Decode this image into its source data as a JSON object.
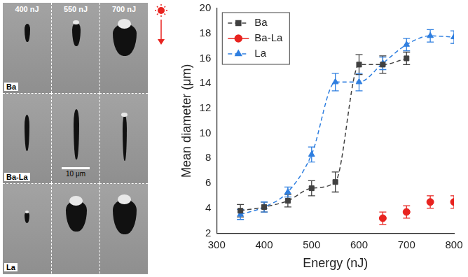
{
  "chart_data": {
    "type": "line",
    "xlabel": "Energy (nJ)",
    "ylabel": "Mean diameter (μm)",
    "xlim": [
      300,
      800
    ],
    "xticks": [
      300,
      400,
      500,
      600,
      700,
      800
    ],
    "ylim": [
      2,
      20
    ],
    "yticks": [
      2,
      4,
      6,
      8,
      10,
      12,
      14,
      16,
      18,
      20
    ],
    "grid": false,
    "legend": "top-left",
    "series": [
      {
        "name": "Ba",
        "color": "#404040",
        "marker": "square",
        "line_style": "dashed",
        "x": [
          350,
          400,
          450,
          500,
          550,
          600,
          650,
          700
        ],
        "values": [
          3.8,
          4.1,
          4.6,
          5.6,
          6.1,
          15.5,
          15.5,
          16.0
        ],
        "errors": [
          0.5,
          0.4,
          0.5,
          0.6,
          0.8,
          0.8,
          0.7,
          0.5
        ]
      },
      {
        "name": "Ba-La",
        "color": "#e8231f",
        "marker": "circle",
        "line_style": "none",
        "x": [
          650,
          700,
          750,
          800
        ],
        "values": [
          3.2,
          3.7,
          4.5,
          4.5
        ],
        "errors": [
          0.5,
          0.5,
          0.5,
          0.5
        ]
      },
      {
        "name": "La",
        "color": "#2f7fe0",
        "marker": "triangle",
        "line_style": "dashed",
        "x": [
          350,
          400,
          450,
          500,
          550,
          600,
          650,
          700,
          750,
          800
        ],
        "values": [
          3.5,
          4.1,
          5.3,
          8.3,
          14.1,
          14.1,
          15.6,
          17.1,
          17.8,
          17.7
        ],
        "errors": [
          0.4,
          0.4,
          0.4,
          0.6,
          0.7,
          0.7,
          0.5,
          0.5,
          0.5,
          0.5
        ]
      }
    ]
  },
  "image_panel": {
    "columns": [
      "400 nJ",
      "550 nJ",
      "700 nJ"
    ],
    "rows": [
      "Ba",
      "Ba-La",
      "La"
    ],
    "scale_bar": "10 μm"
  }
}
